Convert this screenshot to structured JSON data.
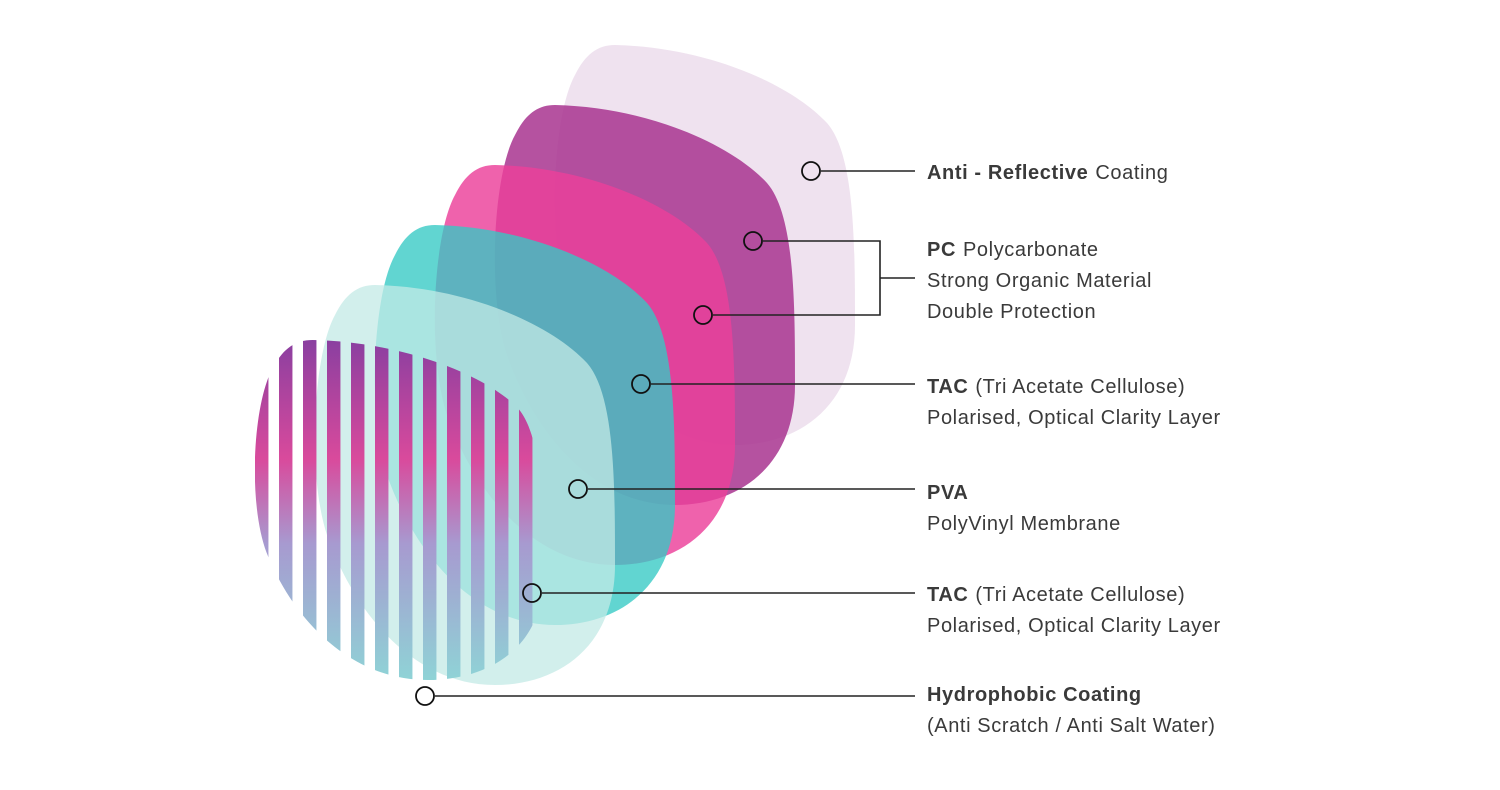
{
  "labels": [
    {
      "lines": [
        {
          "bold": "Anti - Reflective",
          "text": "Coating"
        }
      ]
    },
    {
      "lines": [
        {
          "bold": "PC",
          "text": "Polycarbonate"
        },
        {
          "text": "Strong Organic Material"
        },
        {
          "text": "Double Protection"
        }
      ]
    },
    {
      "lines": [
        {
          "bold": "TAC",
          "text": "(Tri Acetate Cellulose)"
        },
        {
          "text": "Polarised, Optical Clarity Layer"
        }
      ]
    },
    {
      "lines": [
        {
          "bold": "PVA"
        },
        {
          "text": "PolyVinyl Membrane"
        }
      ]
    },
    {
      "lines": [
        {
          "bold": "TAC",
          "text": "(Tri Acetate Cellulose)"
        },
        {
          "text": "Polarised, Optical Clarity Layer"
        }
      ]
    },
    {
      "lines": [
        {
          "bold": "Hydrophobic Coating"
        },
        {
          "text": "(Anti Scratch / Anti Salt Water)"
        }
      ]
    }
  ]
}
